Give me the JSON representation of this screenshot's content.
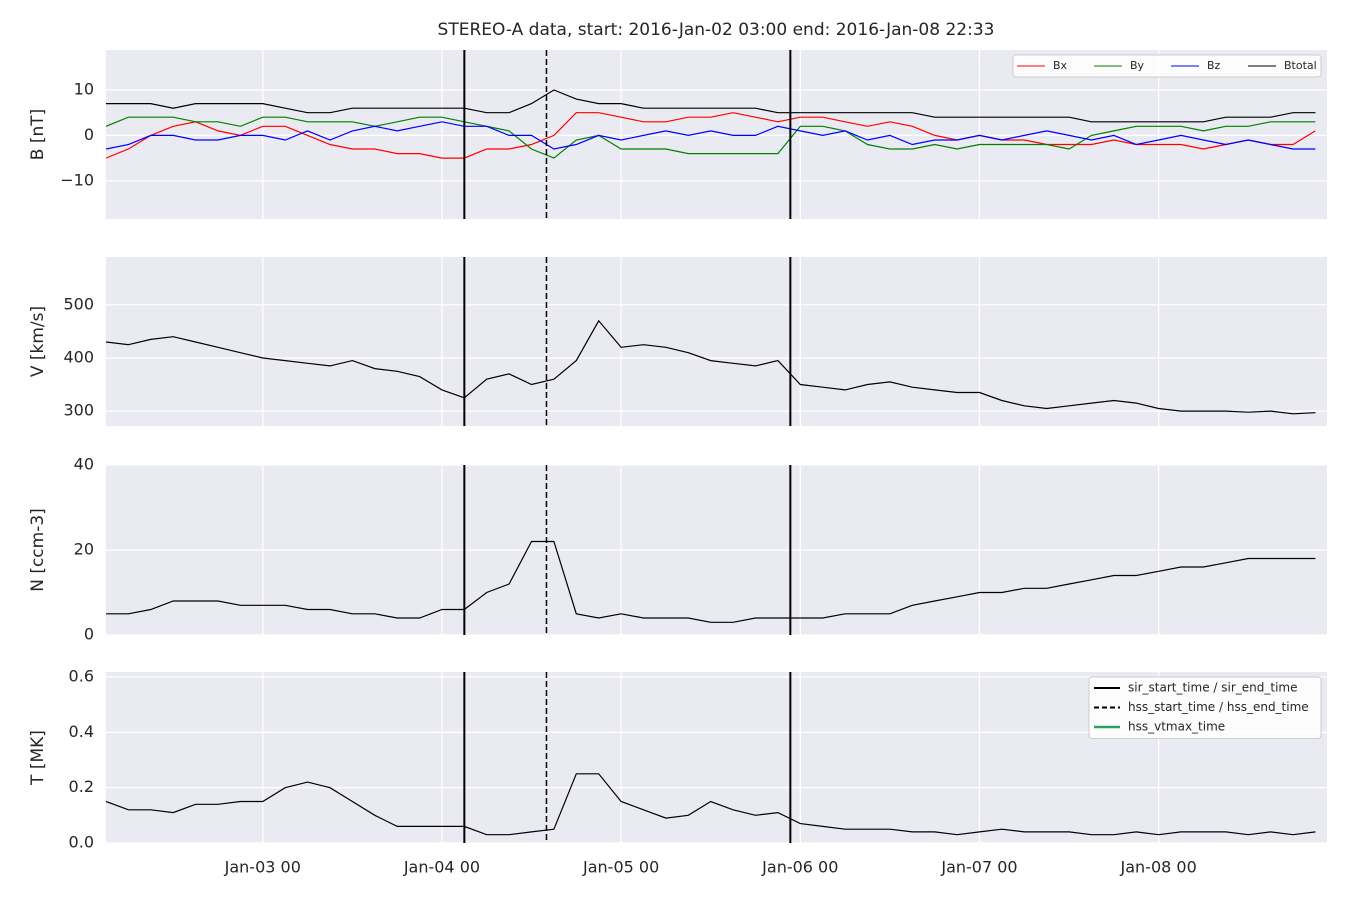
{
  "title": "STEREO-A data, start: 2016-Jan-02 03:00  end: 2016-Jan-08 22:33",
  "events": [
    {
      "label": "sir_start_time / sir_end_time",
      "color": "#000000",
      "style": "solid",
      "times": [
        "Jan-04 03:00",
        "Jan-05 22:40"
      ]
    },
    {
      "label": "hss_start_time / hss_end_time",
      "color": "#000000",
      "style": "dashed",
      "times": [
        "Jan-04 14:00"
      ]
    },
    {
      "label": "hss_vtmax_time",
      "color": "#2ca25f",
      "style": "solid",
      "times": []
    }
  ],
  "chart_data": [
    {
      "type": "line",
      "ylabel": "B [nT]",
      "x": [
        "Jan-02 03:00",
        "Jan-02 06:00",
        "Jan-02 09:00",
        "Jan-02 12:00",
        "Jan-02 15:00",
        "Jan-02 18:00",
        "Jan-02 21:00",
        "Jan-03 00:00",
        "Jan-03 03:00",
        "Jan-03 06:00",
        "Jan-03 09:00",
        "Jan-03 12:00",
        "Jan-03 15:00",
        "Jan-03 18:00",
        "Jan-03 21:00",
        "Jan-04 00:00",
        "Jan-04 03:00",
        "Jan-04 06:00",
        "Jan-04 09:00",
        "Jan-04 12:00",
        "Jan-04 15:00",
        "Jan-04 18:00",
        "Jan-04 21:00",
        "Jan-05 00:00",
        "Jan-05 03:00",
        "Jan-05 06:00",
        "Jan-05 09:00",
        "Jan-05 12:00",
        "Jan-05 15:00",
        "Jan-05 18:00",
        "Jan-05 21:00",
        "Jan-06 00:00",
        "Jan-06 03:00",
        "Jan-06 06:00",
        "Jan-06 09:00",
        "Jan-06 12:00",
        "Jan-06 15:00",
        "Jan-06 18:00",
        "Jan-06 21:00",
        "Jan-07 00:00",
        "Jan-07 03:00",
        "Jan-07 06:00",
        "Jan-07 09:00",
        "Jan-07 12:00",
        "Jan-07 15:00",
        "Jan-07 18:00",
        "Jan-07 21:00",
        "Jan-08 00:00",
        "Jan-08 03:00",
        "Jan-08 06:00",
        "Jan-08 09:00",
        "Jan-08 12:00",
        "Jan-08 15:00",
        "Jan-08 18:00",
        "Jan-08 21:00"
      ],
      "series": [
        {
          "name": "Bx",
          "color": "#ff0000",
          "values": [
            -5,
            -3,
            0,
            2,
            3,
            1,
            0,
            2,
            2,
            0,
            -2,
            -3,
            -3,
            -4,
            -4,
            -5,
            -5,
            -3,
            -3,
            -2,
            0,
            5,
            5,
            4,
            3,
            3,
            4,
            4,
            5,
            4,
            3,
            4,
            4,
            3,
            2,
            3,
            2,
            0,
            -1,
            0,
            -1,
            -1,
            -2,
            -2,
            -2,
            -1,
            -2,
            -2,
            -2,
            -3,
            -2,
            -1,
            -2,
            -2,
            1
          ]
        },
        {
          "name": "By",
          "color": "#008000",
          "values": [
            2,
            4,
            4,
            4,
            3,
            3,
            2,
            4,
            4,
            3,
            3,
            3,
            2,
            3,
            4,
            4,
            3,
            2,
            1,
            -3,
            -5,
            -1,
            0,
            -3,
            -3,
            -3,
            -4,
            -4,
            -4,
            -4,
            -4,
            2,
            2,
            1,
            -2,
            -3,
            -3,
            -2,
            -3,
            -2,
            -2,
            -2,
            -2,
            -3,
            0,
            1,
            2,
            2,
            2,
            1,
            2,
            2,
            3,
            3,
            3
          ]
        },
        {
          "name": "Bz",
          "color": "#0000ff",
          "values": [
            -3,
            -2,
            0,
            0,
            -1,
            -1,
            0,
            0,
            -1,
            1,
            -1,
            1,
            2,
            1,
            2,
            3,
            2,
            2,
            0,
            0,
            -3,
            -2,
            0,
            -1,
            0,
            1,
            0,
            1,
            0,
            0,
            2,
            1,
            0,
            1,
            -1,
            0,
            -2,
            -1,
            -1,
            0,
            -1,
            0,
            1,
            0,
            -1,
            0,
            -2,
            -1,
            0,
            -1,
            -2,
            -1,
            -2,
            -3,
            -3
          ]
        },
        {
          "name": "Btotal",
          "color": "#000000",
          "values": [
            7,
            7,
            7,
            6,
            7,
            7,
            7,
            7,
            6,
            5,
            5,
            6,
            6,
            6,
            6,
            6,
            6,
            5,
            5,
            7,
            10,
            8,
            7,
            7,
            6,
            6,
            6,
            6,
            6,
            6,
            5,
            5,
            5,
            5,
            5,
            5,
            5,
            4,
            4,
            4,
            4,
            4,
            4,
            4,
            3,
            3,
            3,
            3,
            3,
            3,
            4,
            4,
            4,
            5,
            5
          ]
        }
      ],
      "xlim": [
        "Jan-02 03:00",
        "Jan-08 22:33"
      ],
      "xticks": [
        {
          "value": "Jan-03 00:00",
          "label": "Jan-03 00"
        },
        {
          "value": "Jan-04 00:00",
          "label": "Jan-04 00"
        },
        {
          "value": "Jan-05 00:00",
          "label": "Jan-05 00"
        },
        {
          "value": "Jan-06 00:00",
          "label": "Jan-06 00"
        },
        {
          "value": "Jan-07 00:00",
          "label": "Jan-07 00"
        },
        {
          "value": "Jan-08 00:00",
          "label": "Jan-08 00"
        }
      ],
      "xtick_labels": false,
      "ylim": [
        -18.4,
        18.8
      ],
      "yticks": [
        {
          "value": -10,
          "label": "−10"
        },
        0,
        10
      ],
      "grid": true,
      "legend": "upper right"
    },
    {
      "type": "line",
      "ylabel": "V [km/s]",
      "x": [
        "Jan-02 03:00",
        "Jan-02 06:00",
        "Jan-02 09:00",
        "Jan-02 12:00",
        "Jan-02 15:00",
        "Jan-02 18:00",
        "Jan-02 21:00",
        "Jan-03 00:00",
        "Jan-03 03:00",
        "Jan-03 06:00",
        "Jan-03 09:00",
        "Jan-03 12:00",
        "Jan-03 15:00",
        "Jan-03 18:00",
        "Jan-03 21:00",
        "Jan-04 00:00",
        "Jan-04 03:00",
        "Jan-04 06:00",
        "Jan-04 09:00",
        "Jan-04 12:00",
        "Jan-04 15:00",
        "Jan-04 18:00",
        "Jan-04 21:00",
        "Jan-05 00:00",
        "Jan-05 03:00",
        "Jan-05 06:00",
        "Jan-05 09:00",
        "Jan-05 12:00",
        "Jan-05 15:00",
        "Jan-05 18:00",
        "Jan-05 21:00",
        "Jan-06 00:00",
        "Jan-06 03:00",
        "Jan-06 06:00",
        "Jan-06 09:00",
        "Jan-06 12:00",
        "Jan-06 15:00",
        "Jan-06 18:00",
        "Jan-06 21:00",
        "Jan-07 00:00",
        "Jan-07 03:00",
        "Jan-07 06:00",
        "Jan-07 09:00",
        "Jan-07 12:00",
        "Jan-07 15:00",
        "Jan-07 18:00",
        "Jan-07 21:00",
        "Jan-08 00:00",
        "Jan-08 03:00",
        "Jan-08 06:00",
        "Jan-08 09:00",
        "Jan-08 12:00",
        "Jan-08 15:00",
        "Jan-08 18:00",
        "Jan-08 21:00"
      ],
      "values": [
        430,
        425,
        435,
        440,
        430,
        420,
        410,
        400,
        395,
        390,
        385,
        395,
        380,
        375,
        365,
        340,
        325,
        360,
        370,
        350,
        360,
        395,
        470,
        420,
        425,
        420,
        410,
        395,
        390,
        385,
        395,
        350,
        345,
        340,
        350,
        355,
        345,
        340,
        335,
        335,
        320,
        310,
        305,
        310,
        315,
        320,
        315,
        305,
        300,
        300,
        300,
        298,
        300,
        295,
        297
      ],
      "color": "#000000",
      "xlim": [
        "Jan-02 03:00",
        "Jan-08 22:33"
      ],
      "xticks": [
        {
          "value": "Jan-03 00:00",
          "label": "Jan-03 00"
        },
        {
          "value": "Jan-04 00:00",
          "label": "Jan-04 00"
        },
        {
          "value": "Jan-05 00:00",
          "label": "Jan-05 00"
        },
        {
          "value": "Jan-06 00:00",
          "label": "Jan-06 00"
        },
        {
          "value": "Jan-07 00:00",
          "label": "Jan-07 00"
        },
        {
          "value": "Jan-08 00:00",
          "label": "Jan-08 00"
        }
      ],
      "xtick_labels": false,
      "ylim": [
        272,
        590
      ],
      "yticks": [
        300,
        400,
        500
      ],
      "grid": true
    },
    {
      "type": "line",
      "ylabel": "N [ccm-3]",
      "x": [
        "Jan-02 03:00",
        "Jan-02 06:00",
        "Jan-02 09:00",
        "Jan-02 12:00",
        "Jan-02 15:00",
        "Jan-02 18:00",
        "Jan-02 21:00",
        "Jan-03 00:00",
        "Jan-03 03:00",
        "Jan-03 06:00",
        "Jan-03 09:00",
        "Jan-03 12:00",
        "Jan-03 15:00",
        "Jan-03 18:00",
        "Jan-03 21:00",
        "Jan-04 00:00",
        "Jan-04 03:00",
        "Jan-04 06:00",
        "Jan-04 09:00",
        "Jan-04 12:00",
        "Jan-04 15:00",
        "Jan-04 18:00",
        "Jan-04 21:00",
        "Jan-05 00:00",
        "Jan-05 03:00",
        "Jan-05 06:00",
        "Jan-05 09:00",
        "Jan-05 12:00",
        "Jan-05 15:00",
        "Jan-05 18:00",
        "Jan-05 21:00",
        "Jan-06 00:00",
        "Jan-06 03:00",
        "Jan-06 06:00",
        "Jan-06 09:00",
        "Jan-06 12:00",
        "Jan-06 15:00",
        "Jan-06 18:00",
        "Jan-06 21:00",
        "Jan-07 00:00",
        "Jan-07 03:00",
        "Jan-07 06:00",
        "Jan-07 09:00",
        "Jan-07 12:00",
        "Jan-07 15:00",
        "Jan-07 18:00",
        "Jan-07 21:00",
        "Jan-08 00:00",
        "Jan-08 03:00",
        "Jan-08 06:00",
        "Jan-08 09:00",
        "Jan-08 12:00",
        "Jan-08 15:00",
        "Jan-08 18:00",
        "Jan-08 21:00"
      ],
      "values": [
        5,
        5,
        6,
        8,
        8,
        8,
        7,
        7,
        7,
        6,
        6,
        5,
        5,
        4,
        4,
        6,
        6,
        10,
        12,
        22,
        22,
        5,
        4,
        5,
        4,
        4,
        4,
        3,
        3,
        4,
        4,
        4,
        4,
        5,
        5,
        5,
        7,
        8,
        9,
        10,
        10,
        11,
        11,
        12,
        13,
        14,
        14,
        15,
        16,
        16,
        17,
        18,
        18,
        18,
        18
      ],
      "color": "#000000",
      "xlim": [
        "Jan-02 03:00",
        "Jan-08 22:33"
      ],
      "xticks": [
        {
          "value": "Jan-03 00:00",
          "label": "Jan-03 00"
        },
        {
          "value": "Jan-04 00:00",
          "label": "Jan-04 00"
        },
        {
          "value": "Jan-05 00:00",
          "label": "Jan-05 00"
        },
        {
          "value": "Jan-06 00:00",
          "label": "Jan-06 00"
        },
        {
          "value": "Jan-07 00:00",
          "label": "Jan-07 00"
        },
        {
          "value": "Jan-08 00:00",
          "label": "Jan-08 00"
        }
      ],
      "xtick_labels": false,
      "ylim": [
        0,
        40
      ],
      "yticks": [
        0,
        20,
        40
      ],
      "grid": true
    },
    {
      "type": "line",
      "ylabel": "T [MK]",
      "x": [
        "Jan-02 03:00",
        "Jan-02 06:00",
        "Jan-02 09:00",
        "Jan-02 12:00",
        "Jan-02 15:00",
        "Jan-02 18:00",
        "Jan-02 21:00",
        "Jan-03 00:00",
        "Jan-03 03:00",
        "Jan-03 06:00",
        "Jan-03 09:00",
        "Jan-03 12:00",
        "Jan-03 15:00",
        "Jan-03 18:00",
        "Jan-03 21:00",
        "Jan-04 00:00",
        "Jan-04 03:00",
        "Jan-04 06:00",
        "Jan-04 09:00",
        "Jan-04 12:00",
        "Jan-04 15:00",
        "Jan-04 18:00",
        "Jan-04 21:00",
        "Jan-05 00:00",
        "Jan-05 03:00",
        "Jan-05 06:00",
        "Jan-05 09:00",
        "Jan-05 12:00",
        "Jan-05 15:00",
        "Jan-05 18:00",
        "Jan-05 21:00",
        "Jan-06 00:00",
        "Jan-06 03:00",
        "Jan-06 06:00",
        "Jan-06 09:00",
        "Jan-06 12:00",
        "Jan-06 15:00",
        "Jan-06 18:00",
        "Jan-06 21:00",
        "Jan-07 00:00",
        "Jan-07 03:00",
        "Jan-07 06:00",
        "Jan-07 09:00",
        "Jan-07 12:00",
        "Jan-07 15:00",
        "Jan-07 18:00",
        "Jan-07 21:00",
        "Jan-08 00:00",
        "Jan-08 03:00",
        "Jan-08 06:00",
        "Jan-08 09:00",
        "Jan-08 12:00",
        "Jan-08 15:00",
        "Jan-08 18:00",
        "Jan-08 21:00"
      ],
      "values": [
        0.15,
        0.12,
        0.12,
        0.11,
        0.14,
        0.14,
        0.15,
        0.15,
        0.2,
        0.22,
        0.2,
        0.15,
        0.1,
        0.06,
        0.06,
        0.06,
        0.06,
        0.03,
        0.03,
        0.04,
        0.05,
        0.25,
        0.25,
        0.15,
        0.12,
        0.09,
        0.1,
        0.15,
        0.12,
        0.1,
        0.11,
        0.07,
        0.06,
        0.05,
        0.05,
        0.05,
        0.04,
        0.04,
        0.03,
        0.04,
        0.05,
        0.04,
        0.04,
        0.04,
        0.03,
        0.03,
        0.04,
        0.03,
        0.04,
        0.04,
        0.04,
        0.03,
        0.04,
        0.03,
        0.04
      ],
      "color": "#000000",
      "xlim": [
        "Jan-02 03:00",
        "Jan-08 22:33"
      ],
      "xticks": [
        {
          "value": "Jan-03 00:00",
          "label": "Jan-03 00"
        },
        {
          "value": "Jan-04 00:00",
          "label": "Jan-04 00"
        },
        {
          "value": "Jan-05 00:00",
          "label": "Jan-05 00"
        },
        {
          "value": "Jan-06 00:00",
          "label": "Jan-06 00"
        },
        {
          "value": "Jan-07 00:00",
          "label": "Jan-07 00"
        },
        {
          "value": "Jan-08 00:00",
          "label": "Jan-08 00"
        }
      ],
      "xtick_labels": true,
      "ylim": [
        0,
        0.618
      ],
      "yticks": [
        {
          "value": 0,
          "label": "0.0"
        },
        0.2,
        0.4,
        0.6
      ],
      "grid": true,
      "legend": "upper right"
    }
  ]
}
